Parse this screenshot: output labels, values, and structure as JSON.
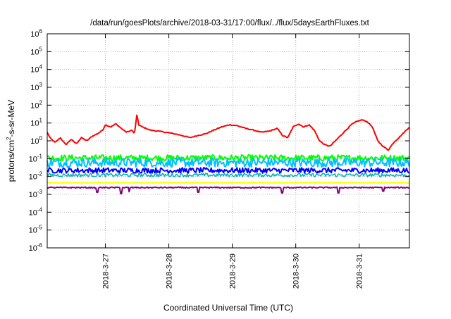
{
  "chart_data": {
    "type": "line",
    "title": "/data/run/goesPlots/archive/2018-03-31/17:00/flux/../flux/5daysEarthFluxes.txt",
    "xlabel": "Coordinated Universal Time (UTC)",
    "ylabel_parts": {
      "pre": "protons/cm",
      "sup": "2",
      "post": "-s-sr-MeV"
    },
    "y_scale": "log",
    "ylim": [
      1e-06,
      1000000.0
    ],
    "xlim": [
      "2018-03-26 02:00",
      "2018-03-31 19:00"
    ],
    "y_ticks": [
      {
        "value": 1e-06,
        "base": "10",
        "exp": "-6"
      },
      {
        "value": 1e-05,
        "base": "10",
        "exp": "-5"
      },
      {
        "value": 0.0001,
        "base": "10",
        "exp": "-4"
      },
      {
        "value": 0.001,
        "base": "10",
        "exp": "-3"
      },
      {
        "value": 0.01,
        "base": "10",
        "exp": "-2"
      },
      {
        "value": 0.1,
        "base": "10",
        "exp": "-1"
      },
      {
        "value": 1,
        "base": "10",
        "exp": "0"
      },
      {
        "value": 10,
        "base": "10",
        "exp": "1"
      },
      {
        "value": 100,
        "base": "10",
        "exp": "2"
      },
      {
        "value": 1000,
        "base": "10",
        "exp": "3"
      },
      {
        "value": 10000,
        "base": "10",
        "exp": "4"
      },
      {
        "value": 100000,
        "base": "10",
        "exp": "5"
      },
      {
        "value": 1000000,
        "base": "10",
        "exp": "6"
      }
    ],
    "x_ticks": [
      "2018-3-27",
      "2018-3-28",
      "2018-3-29",
      "2018-3-30",
      "2018-3-31"
    ],
    "grid": true,
    "legend": "none",
    "series": [
      {
        "color": "#ff0000",
        "line_width": 2,
        "noise": 0.05,
        "dips": [],
        "points": [
          [
            "2018-03-26 02:00",
            3
          ],
          [
            "2018-03-26 03:00",
            1.5
          ],
          [
            "2018-03-26 05:00",
            0.8
          ],
          [
            "2018-03-26 07:00",
            1.5
          ],
          [
            "2018-03-26 09:00",
            0.6
          ],
          [
            "2018-03-26 11:00",
            1.2
          ],
          [
            "2018-03-26 13:00",
            0.7
          ],
          [
            "2018-03-26 15:00",
            1.5
          ],
          [
            "2018-03-26 17:00",
            1.0
          ],
          [
            "2018-03-26 19:00",
            1.8
          ],
          [
            "2018-03-26 21:00",
            2.5
          ],
          [
            "2018-03-26 23:00",
            4
          ],
          [
            "2018-03-27 00:00",
            8
          ],
          [
            "2018-03-27 02:00",
            6
          ],
          [
            "2018-03-27 04:00",
            9
          ],
          [
            "2018-03-27 06:00",
            5
          ],
          [
            "2018-03-27 08:00",
            3
          ],
          [
            "2018-03-27 10:00",
            4
          ],
          [
            "2018-03-27 11:00",
            2.5
          ],
          [
            "2018-03-27 12:00",
            35
          ],
          [
            "2018-03-27 12:30",
            8
          ],
          [
            "2018-03-27 14:00",
            6
          ],
          [
            "2018-03-27 17:00",
            4
          ],
          [
            "2018-03-27 20:00",
            3.5
          ],
          [
            "2018-03-27 23:00",
            3
          ],
          [
            "2018-03-28 02:00",
            2.5
          ],
          [
            "2018-03-28 05:00",
            2
          ],
          [
            "2018-03-28 08:00",
            1.5
          ],
          [
            "2018-03-28 11:00",
            2
          ],
          [
            "2018-03-28 14:00",
            2.5
          ],
          [
            "2018-03-28 17:00",
            4
          ],
          [
            "2018-03-28 20:00",
            6
          ],
          [
            "2018-03-28 23:00",
            8
          ],
          [
            "2018-03-29 02:00",
            7
          ],
          [
            "2018-03-29 05:00",
            5
          ],
          [
            "2018-03-29 08:00",
            4
          ],
          [
            "2018-03-29 11:00",
            3
          ],
          [
            "2018-03-29 14:00",
            3.5
          ],
          [
            "2018-03-29 17:00",
            5
          ],
          [
            "2018-03-29 19:00",
            2
          ],
          [
            "2018-03-29 21:00",
            1.5
          ],
          [
            "2018-03-29 23:00",
            6
          ],
          [
            "2018-03-30 01:00",
            9
          ],
          [
            "2018-03-30 03:00",
            6
          ],
          [
            "2018-03-30 05:00",
            8
          ],
          [
            "2018-03-30 07:00",
            4
          ],
          [
            "2018-03-30 09:00",
            1
          ],
          [
            "2018-03-30 11:00",
            0.6
          ],
          [
            "2018-03-30 13:00",
            0.5
          ],
          [
            "2018-03-30 15:00",
            1
          ],
          [
            "2018-03-30 17:00",
            2
          ],
          [
            "2018-03-30 19:00",
            4
          ],
          [
            "2018-03-30 21:00",
            8
          ],
          [
            "2018-03-30 23:00",
            12
          ],
          [
            "2018-03-31 01:00",
            15
          ],
          [
            "2018-03-31 03:00",
            12
          ],
          [
            "2018-03-31 05:00",
            6
          ],
          [
            "2018-03-31 07:00",
            1
          ],
          [
            "2018-03-31 09:00",
            0.5
          ],
          [
            "2018-03-31 11:00",
            0.3
          ],
          [
            "2018-03-31 13:00",
            0.8
          ],
          [
            "2018-03-31 15:00",
            1.5
          ],
          [
            "2018-03-31 17:00",
            3
          ],
          [
            "2018-03-31 19:00",
            6
          ]
        ]
      },
      {
        "color": "#00ff00",
        "line_width": 2,
        "noise": 0.35,
        "dips": [],
        "points": [
          [
            "2018-03-26 02:00",
            0.11
          ],
          [
            "2018-03-31 19:00",
            0.11
          ]
        ]
      },
      {
        "color": "#00c0ff",
        "line_width": 2,
        "noise": 0.5,
        "dips": [],
        "points": [
          [
            "2018-03-26 02:00",
            0.06
          ],
          [
            "2018-03-31 19:00",
            0.06
          ]
        ]
      },
      {
        "color": "#0000ff",
        "line_width": 2,
        "noise": 0.3,
        "dips": [],
        "points": [
          [
            "2018-03-26 02:00",
            0.022
          ],
          [
            "2018-03-31 19:00",
            0.022
          ]
        ]
      },
      {
        "color": "#00b0b0",
        "line_width": 1.5,
        "noise": 0.2,
        "dips": [],
        "points": [
          [
            "2018-03-26 02:00",
            0.012
          ],
          [
            "2018-03-31 19:00",
            0.012
          ]
        ]
      },
      {
        "color": "#ffff00",
        "line_width": 2,
        "noise": 0.03,
        "dips": [],
        "points": [
          [
            "2018-03-26 02:00",
            0.0045
          ],
          [
            "2018-03-31 19:00",
            0.0045
          ]
        ]
      },
      {
        "color": "#800080",
        "line_width": 2,
        "noise": 0.06,
        "dips": [
          [
            "2018-03-26 21:00",
            0.0013
          ],
          [
            "2018-03-27 06:00",
            0.0011
          ],
          [
            "2018-03-27 09:00",
            0.0014
          ],
          [
            "2018-03-28 11:00",
            0.0013
          ],
          [
            "2018-03-29 19:00",
            0.0012
          ],
          [
            "2018-03-30 16:00",
            0.0012
          ],
          [
            "2018-03-31 09:00",
            0.0015
          ]
        ],
        "points": [
          [
            "2018-03-26 02:00",
            0.0024
          ],
          [
            "2018-03-31 19:00",
            0.0024
          ]
        ]
      }
    ]
  }
}
